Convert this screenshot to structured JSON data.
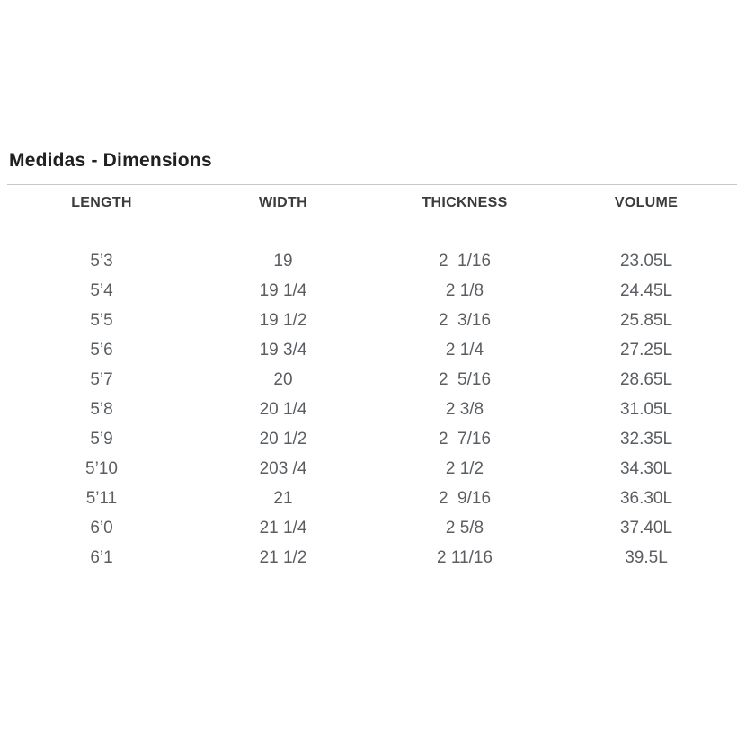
{
  "page": {
    "title": "Medidas - Dimensions"
  },
  "table": {
    "columns": [
      "LENGTH",
      "WIDTH",
      "THICKNESS",
      "VOLUME"
    ],
    "rows": [
      [
        "5’3",
        "19",
        "2  1/16",
        "23.05L"
      ],
      [
        "5’4",
        "19 1/4",
        "2 1/8",
        "24.45L"
      ],
      [
        "5’5",
        "19 1/2",
        "2  3/16",
        "25.85L"
      ],
      [
        "5’6",
        "19 3/4",
        "2 1/4",
        "27.25L"
      ],
      [
        "5’7",
        "20",
        "2  5/16",
        "28.65L"
      ],
      [
        "5’8",
        "20 1/4",
        "2 3/8",
        "31.05L"
      ],
      [
        "5’9",
        "20 1/2",
        "2  7/16",
        "32.35L"
      ],
      [
        "5’10",
        "203 /4",
        "2 1/2",
        "34.30L"
      ],
      [
        "5’11",
        "21",
        "2  9/16",
        "36.30L"
      ],
      [
        "6’0",
        "21 1/4",
        "2 5/8",
        "37.40L"
      ],
      [
        "6’1",
        "21 1/2",
        "2 11/16",
        "39.5L"
      ]
    ]
  },
  "colors": {
    "background": "#ffffff",
    "title_text": "#202020",
    "header_text": "#3b3b3b",
    "cell_text": "#5a5e62",
    "divider": "#c6c8ca"
  }
}
